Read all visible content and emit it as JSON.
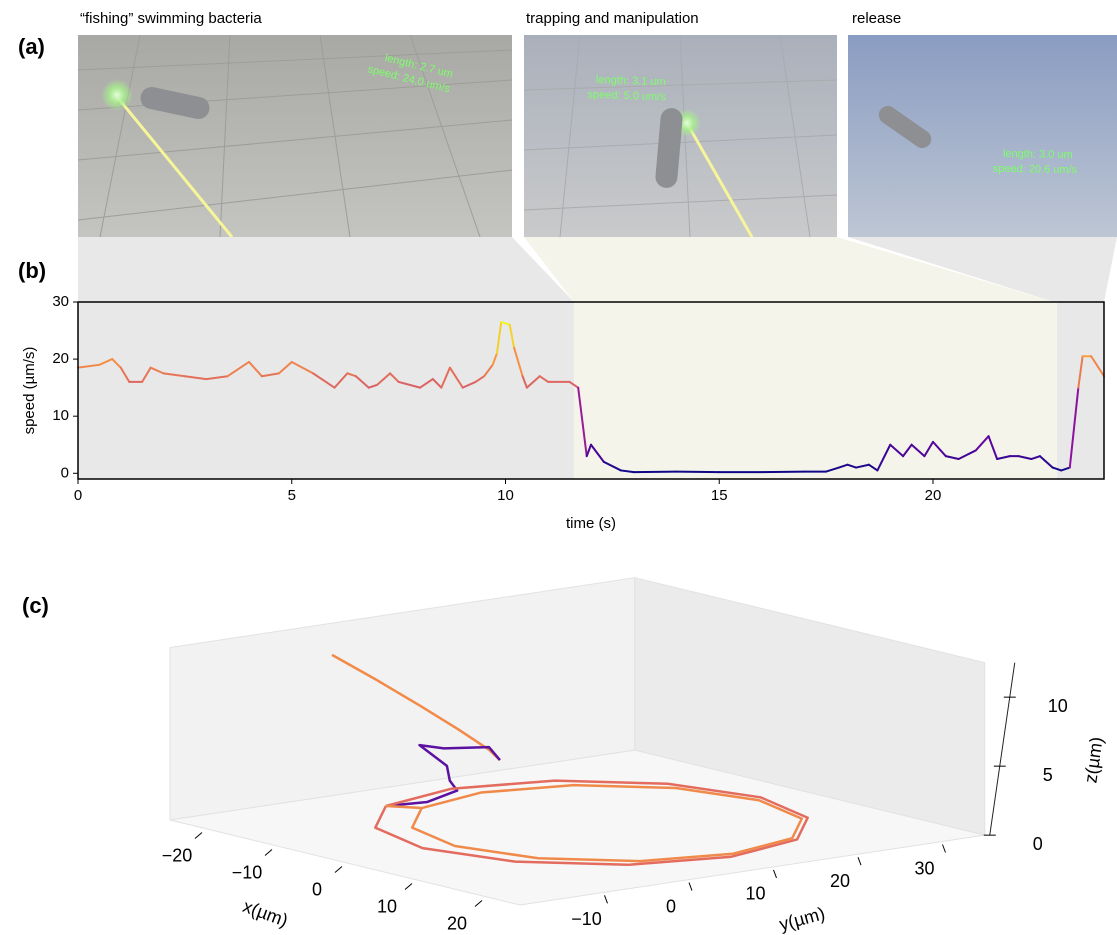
{
  "panel_labels": [
    "(a)",
    "(b)",
    "(c)"
  ],
  "screenshots": [
    {
      "title": "“fishing” swimming bacteria",
      "lines": [
        "length: 2.7 um",
        "speed: 24.0 um/s"
      ]
    },
    {
      "title": "trapping and manipulation",
      "lines": [
        "length: 3.1 um",
        "speed: 5.0 um/s"
      ]
    },
    {
      "title": "release",
      "lines": [
        "length: 3.0 um",
        "speed: 20.6 um/s"
      ]
    }
  ],
  "chart_data": [
    {
      "type": "line",
      "xlabel": "time (s)",
      "ylabel": "speed (µm/s)",
      "xlim": [
        0,
        24
      ],
      "ylim": [
        -1,
        30
      ],
      "xticks": [
        0,
        5,
        10,
        15,
        20
      ],
      "yticks": [
        0,
        10,
        20,
        30
      ],
      "colormap": "plasma",
      "highlight": [
        11.6,
        22.9
      ],
      "x": [
        0,
        0.5,
        0.8,
        1,
        1.2,
        1.5,
        1.7,
        2,
        2.5,
        3,
        3.5,
        4,
        4.3,
        4.7,
        5,
        5.5,
        6,
        6.3,
        6.5,
        6.8,
        7,
        7.3,
        7.5,
        8,
        8.3,
        8.5,
        8.7,
        9,
        9.3,
        9.5,
        9.7,
        9.8,
        9.9,
        10.1,
        10.2,
        10.4,
        10.5,
        10.8,
        11,
        11.5,
        11.7,
        11.9,
        12,
        12.3,
        12.7,
        13,
        14,
        15,
        16,
        17,
        17.5,
        17.8,
        18,
        18.2,
        18.5,
        18.7,
        19,
        19.3,
        19.5,
        19.8,
        20,
        20.3,
        20.6,
        21,
        21.3,
        21.5,
        21.8,
        22,
        22.3,
        22.5,
        22.8,
        23,
        23.2,
        23.4,
        23.5,
        23.7,
        24
      ],
      "values": [
        18.5,
        19,
        20,
        18.5,
        16,
        16,
        18.5,
        17.5,
        17,
        16.5,
        17,
        19.5,
        17,
        17.5,
        19.5,
        17.5,
        15,
        17.5,
        17,
        15,
        15.5,
        17.5,
        16,
        15,
        16.5,
        15,
        18.5,
        15,
        16,
        17,
        19,
        21,
        26.5,
        26,
        22,
        17,
        15,
        17,
        16,
        16,
        15,
        3,
        5,
        2,
        0.5,
        0.2,
        0.3,
        0.2,
        0.2,
        0.3,
        0.3,
        1,
        1.5,
        1,
        1.5,
        0.5,
        5,
        3,
        5,
        3,
        5.5,
        3,
        2.5,
        4,
        6.5,
        2.5,
        3,
        3,
        2.5,
        3,
        1,
        0.5,
        1,
        15,
        20.5,
        20.5,
        17
      ]
    },
    {
      "type": "line3d",
      "xlabel": "x(µm)",
      "ylabel": "y(µm)",
      "zlabel": "z(µm)",
      "xlim": [
        -25,
        25
      ],
      "ylim": [
        -20,
        35
      ],
      "zlim": [
        0,
        12.5
      ],
      "xticks": [
        {
          "value": -20,
          "label": "−20"
        },
        {
          "value": -10,
          "label": "−10"
        },
        0,
        10,
        20
      ],
      "yticks": [
        {
          "value": -10,
          "label": "−10"
        },
        0,
        10,
        20,
        30
      ],
      "zticks": [
        0,
        5,
        10
      ],
      "series": [
        {
          "color": "#f28a4a",
          "x": [
            -26,
            -20,
            -14,
            -9,
            -5,
            -3.7
          ],
          "y": [
            0,
            0.3,
            0.6,
            0.9,
            1.2,
            1.4
          ],
          "z": [
            10,
            8.9,
            7.7,
            6.6,
            5.6,
            5
          ]
        },
        {
          "color": "#5b12a0",
          "x": [
            -3.7,
            -6,
            -10,
            -13.5,
            -12,
            -14,
            -15,
            -16,
            -18.3
          ],
          "y": [
            1.4,
            2,
            0,
            0,
            2,
            4,
            5.7,
            3,
            0
          ],
          "z": [
            5,
            5.6,
            5.2,
            5,
            3.5,
            2,
            1,
            0.3,
            0
          ]
        },
        {
          "color": "#e36c5e",
          "x": [
            -18.3,
            -11,
            -1,
            9,
            16.3,
            19,
            16.3,
            9,
            -1,
            -11,
            -18.3,
            -21,
            -18.3
          ],
          "y": [
            0,
            -7.3,
            -10,
            -7.3,
            0,
            10,
            20,
            27.3,
            30,
            27.3,
            20,
            10,
            0
          ],
          "z": [
            0,
            0,
            0,
            0,
            0,
            0,
            0,
            0,
            0,
            0,
            0,
            0,
            0
          ]
        },
        {
          "color": "#f08a4b",
          "x": [
            -18.3,
            -15.6,
            -9,
            0,
            9,
            15.6,
            18,
            15.6,
            9,
            0,
            -9,
            -15.6,
            -18,
            -15.6
          ],
          "y": [
            0,
            2,
            -4.6,
            -7,
            -4.6,
            2,
            11,
            20,
            26.6,
            29,
            26.6,
            20,
            11,
            2
          ],
          "z": [
            0,
            0,
            0,
            0,
            0,
            0,
            0,
            0,
            0,
            0,
            0,
            0,
            0,
            0
          ]
        }
      ]
    }
  ]
}
